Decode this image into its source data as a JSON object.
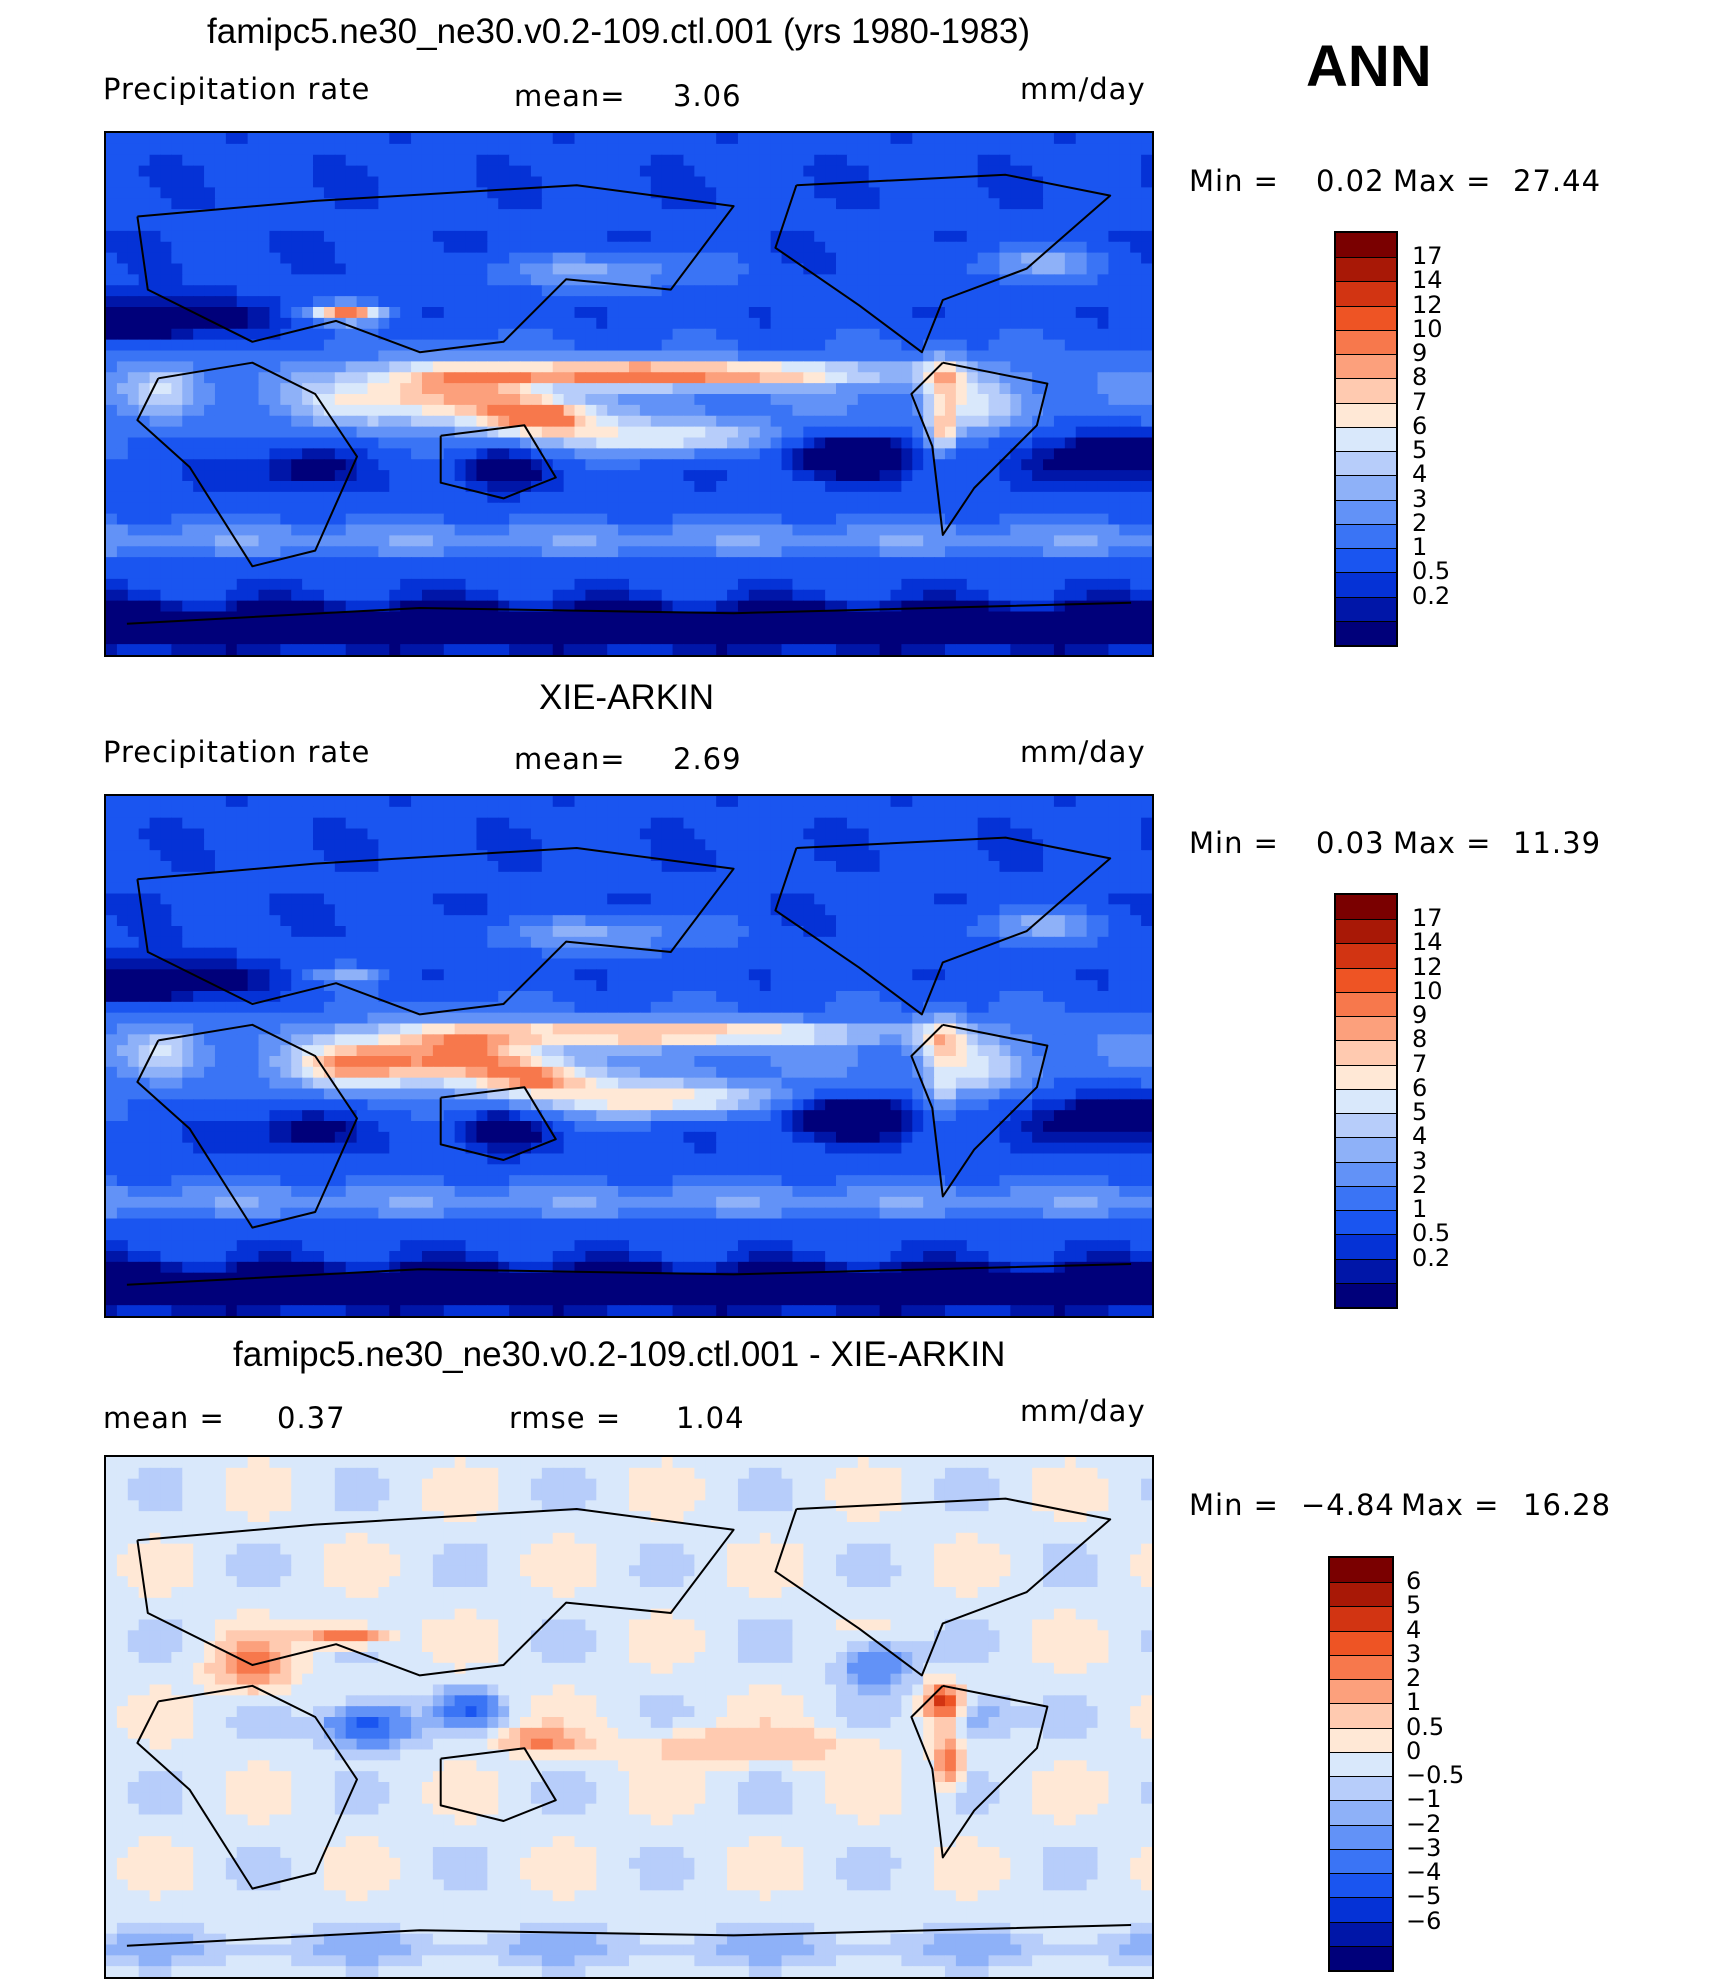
{
  "header": {
    "season": "ANN"
  },
  "palettes": {
    "precip": [
      "#00007a",
      "#0016a8",
      "#0532d6",
      "#1a55f0",
      "#3a74f5",
      "#6292f7",
      "#8eb1f8",
      "#b7cdfa",
      "#d9e8fb",
      "#ffe8d6",
      "#ffcab0",
      "#fca07c",
      "#f7784c",
      "#ee5424",
      "#d23412",
      "#a81806",
      "#7a0000"
    ],
    "diff": [
      "#00007a",
      "#0016a8",
      "#0532d6",
      "#1a55f0",
      "#3a74f5",
      "#6292f7",
      "#8eb1f8",
      "#b7cdfa",
      "#d9e8fb",
      "#ffe8d6",
      "#ffcab0",
      "#fca07c",
      "#f7784c",
      "#ee5424",
      "#d23412",
      "#a81806",
      "#7a0000"
    ]
  },
  "chart_data": [
    {
      "type": "heatmap",
      "title": "famipc5.ne30_ne30.v0.2-109.ctl.001 (yrs 1980-1983)",
      "left_label": "Precipitation rate",
      "mean_label": "mean=",
      "mean_value": "3.06",
      "units": "mm/day",
      "min_label": "Min =",
      "min_value": "0.02",
      "max_label": "Max =",
      "max_value": "27.44",
      "colorbar_levels": [
        "17",
        "14",
        "12",
        "10",
        "9",
        "8",
        "7",
        "6",
        "5",
        "4",
        "3",
        "2",
        "1",
        "0.5",
        "0.2"
      ],
      "palette": "precip"
    },
    {
      "type": "heatmap",
      "title": "XIE-ARKIN",
      "left_label": "Precipitation rate",
      "mean_label": "mean=",
      "mean_value": "2.69",
      "units": "mm/day",
      "min_label": "Min =",
      "min_value": "0.03",
      "max_label": "Max =",
      "max_value": "11.39",
      "colorbar_levels": [
        "17",
        "14",
        "12",
        "10",
        "9",
        "8",
        "7",
        "6",
        "5",
        "4",
        "3",
        "2",
        "1",
        "0.5",
        "0.2"
      ],
      "palette": "precip"
    },
    {
      "type": "heatmap",
      "title": "famipc5.ne30_ne30.v0.2-109.ctl.001 - XIE-ARKIN",
      "left_label": "mean =",
      "mean_label": "rmse =",
      "left_value": "0.37",
      "mean_value": "1.04",
      "units": "mm/day",
      "min_label": "Min =",
      "min_value": "−4.84",
      "max_label": "Max =",
      "max_value": "16.28",
      "colorbar_levels": [
        "6",
        "5",
        "4",
        "3",
        "2",
        "1",
        "0.5",
        "0",
        "−0.5",
        "−1",
        "−2",
        "−3",
        "−4",
        "−5",
        "−6"
      ],
      "palette": "diff"
    }
  ]
}
